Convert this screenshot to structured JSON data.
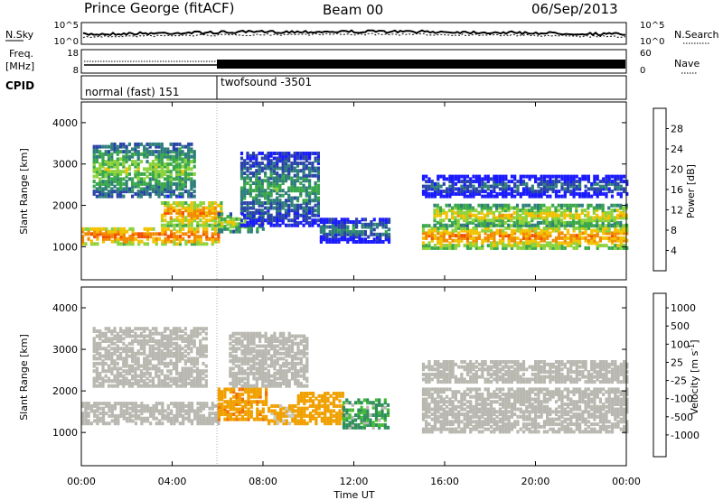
{
  "header": {
    "station": "Prince George (fitACF)",
    "beam": "Beam 00",
    "date": "06/Sep/2013"
  },
  "noise_panel": {
    "left_label": "N.Sky",
    "right_label": "N.Search",
    "left_ticks": [
      "10^5",
      "10^0"
    ],
    "right_ticks": [
      "10^5",
      "10^0"
    ]
  },
  "freq_panel": {
    "left_label_line1": "Freq.",
    "left_label_line2": "[MHz]",
    "left_ticks": [
      "18",
      "8"
    ],
    "right_label": "Nave",
    "right_ticks": [
      "60",
      "0"
    ]
  },
  "cpid_panel": {
    "label": "CPID",
    "segments": [
      {
        "text": "normal (fast) 151"
      },
      {
        "text": "twofsound -3501"
      }
    ]
  },
  "x_axis": {
    "label": "Time UT",
    "ticks": [
      "00:00",
      "04:00",
      "08:00",
      "12:00",
      "16:00",
      "20:00",
      "00:00"
    ]
  },
  "colors": {
    "power_scale": [
      "#1a1aff",
      "#2a45a8",
      "#2f7f7a",
      "#3aa84a",
      "#8cd23a",
      "#f2c200",
      "#f28a00",
      "#f25000",
      "#e80000"
    ],
    "velocity_scale": [
      "#2233bb",
      "#2a6aa8",
      "#2f8f5a",
      "#44bb33",
      "#b8b8b0",
      "#c8c8c0",
      "#f0a000",
      "#f07000",
      "#e83000",
      "#e00000"
    ]
  },
  "chart_data": [
    {
      "type": "heatmap",
      "name": "power",
      "ylabel": "Slant Range [km]",
      "ylim": [
        200,
        4500
      ],
      "xlim_hours": [
        0,
        24
      ],
      "yticks": [
        "1000",
        "2000",
        "3000",
        "4000"
      ],
      "colorbar": {
        "label": "Power [dB]",
        "range": [
          0,
          32
        ],
        "ticks": [
          "4",
          "8",
          "12",
          "16",
          "20",
          "24",
          "28"
        ]
      },
      "bands": [
        {
          "x": [
            0.0,
            6.0
          ],
          "y": [
            1050,
            1450
          ],
          "value": 26
        },
        {
          "x": [
            3.5,
            6.2
          ],
          "y": [
            1500,
            2100
          ],
          "value": 24
        },
        {
          "x": [
            6.0,
            8.0
          ],
          "y": [
            1350,
            1800
          ],
          "value": 18
        },
        {
          "x": [
            0.5,
            5.0
          ],
          "y": [
            2200,
            3500
          ],
          "value": 16
        },
        {
          "x": [
            7.0,
            10.5
          ],
          "y": [
            1500,
            3300
          ],
          "value": 12
        },
        {
          "x": [
            10.5,
            13.5
          ],
          "y": [
            1100,
            1700
          ],
          "value": 10
        },
        {
          "x": [
            15.0,
            24.0
          ],
          "y": [
            950,
            1500
          ],
          "value": 24
        },
        {
          "x": [
            15.5,
            24.0
          ],
          "y": [
            1500,
            2000
          ],
          "value": 20
        },
        {
          "x": [
            15.0,
            24.0
          ],
          "y": [
            2200,
            2700
          ],
          "value": 8
        }
      ]
    },
    {
      "type": "heatmap",
      "name": "velocity",
      "ylabel": "Slant Range [km]",
      "ylim": [
        200,
        4500
      ],
      "xlim_hours": [
        0,
        24
      ],
      "yticks": [
        "1000",
        "2000",
        "3000",
        "4000"
      ],
      "colorbar": {
        "label": "Velocity [m s^-1]",
        "ticks": [
          "1000",
          "500",
          "100",
          "25",
          "-25",
          "-100",
          "-500",
          "-1000"
        ]
      },
      "bands": [
        {
          "x": [
            0.0,
            6.0
          ],
          "y": [
            1200,
            1700
          ],
          "value": 0
        },
        {
          "x": [
            0.5,
            5.5
          ],
          "y": [
            2100,
            3500
          ],
          "value": 0
        },
        {
          "x": [
            6.0,
            8.2
          ],
          "y": [
            1300,
            2050
          ],
          "value": -400
        },
        {
          "x": [
            8.2,
            9.5
          ],
          "y": [
            1200,
            1650
          ],
          "value": -200
        },
        {
          "x": [
            9.5,
            11.5
          ],
          "y": [
            1200,
            1950
          ],
          "value": -300
        },
        {
          "x": [
            11.5,
            13.5
          ],
          "y": [
            1100,
            1800
          ],
          "value": 150
        },
        {
          "x": [
            6.5,
            10.0
          ],
          "y": [
            2100,
            3400
          ],
          "value": 0
        },
        {
          "x": [
            15.0,
            24.0
          ],
          "y": [
            1000,
            2050
          ],
          "value": 0
        },
        {
          "x": [
            15.0,
            24.0
          ],
          "y": [
            2200,
            2700
          ],
          "value": 0
        }
      ]
    }
  ]
}
